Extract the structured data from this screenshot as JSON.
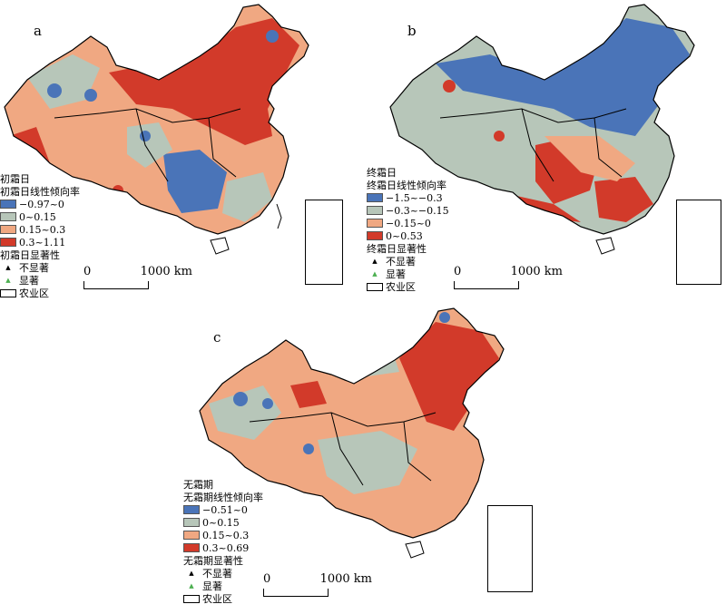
{
  "panels": [
    {
      "letter": "a",
      "legend_title": "初霜日",
      "legend_subtitle": "初霜日线性倾向率",
      "classes": [
        {
          "label": "−0.97~0",
          "color": "#4a74b8"
        },
        {
          "label": "0~0.15",
          "color": "#b7c6b9"
        },
        {
          "label": "0.15~0.3",
          "color": "#f0a882"
        },
        {
          "label": "0.3~1.11",
          "color": "#d23a2a"
        }
      ],
      "sig_title": "初霜日显著性",
      "not_sig": "不显著",
      "sig": "显著",
      "zone": "农业区",
      "scale_start": "0",
      "scale_end": "1000 km"
    },
    {
      "letter": "b",
      "legend_title": "终霜日",
      "legend_subtitle": "终霜日线性倾向率",
      "classes": [
        {
          "label": "−1.5~−0.3",
          "color": "#4a74b8"
        },
        {
          "label": "−0.3~−0.15",
          "color": "#b7c6b9"
        },
        {
          "label": "−0.15~0",
          "color": "#f0a882"
        },
        {
          "label": "0~0.53",
          "color": "#d23a2a"
        }
      ],
      "sig_title": "终霜日显著性",
      "not_sig": "不显著",
      "sig": "显著",
      "zone": "农业区",
      "scale_start": "0",
      "scale_end": "1000 km"
    },
    {
      "letter": "c",
      "legend_title": "无霜期",
      "legend_subtitle": "无霜期线性倾向率",
      "classes": [
        {
          "label": "−0.51~0",
          "color": "#4a74b8"
        },
        {
          "label": "0~0.15",
          "color": "#b7c6b9"
        },
        {
          "label": "0.15~0.3",
          "color": "#f0a882"
        },
        {
          "label": "0.3~0.69",
          "color": "#d23a2a"
        }
      ],
      "sig_title": "无霜期显著性",
      "not_sig": "不显著",
      "sig": "显著",
      "zone": "农业区",
      "scale_start": "0",
      "scale_end": "1000 km"
    }
  ]
}
